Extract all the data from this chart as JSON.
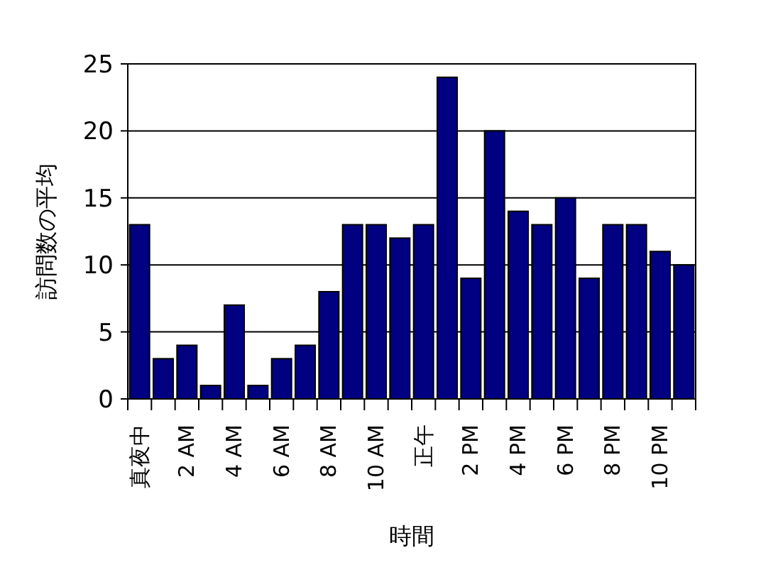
{
  "chart_data": {
    "type": "bar",
    "xlabel": "時間",
    "ylabel": "訪問数の平均",
    "categories": [
      "真夜中",
      null,
      "2 AM",
      null,
      "4 AM",
      null,
      "6 AM",
      null,
      "8 AM",
      null,
      "10 AM",
      null,
      "正午",
      null,
      "2 PM",
      null,
      "4 PM",
      null,
      "6 PM",
      null,
      "8 PM",
      null,
      "10 PM",
      null
    ],
    "values": [
      13,
      3,
      4,
      1,
      7,
      1,
      3,
      4,
      8,
      13,
      13,
      12,
      13,
      24,
      9,
      20,
      14,
      13,
      15,
      9,
      13,
      13,
      11,
      10
    ],
    "color": "#000080",
    "ylim": [
      0,
      25
    ],
    "yticks": [
      0,
      5,
      10,
      15,
      20,
      25
    ],
    "grid": "y"
  }
}
